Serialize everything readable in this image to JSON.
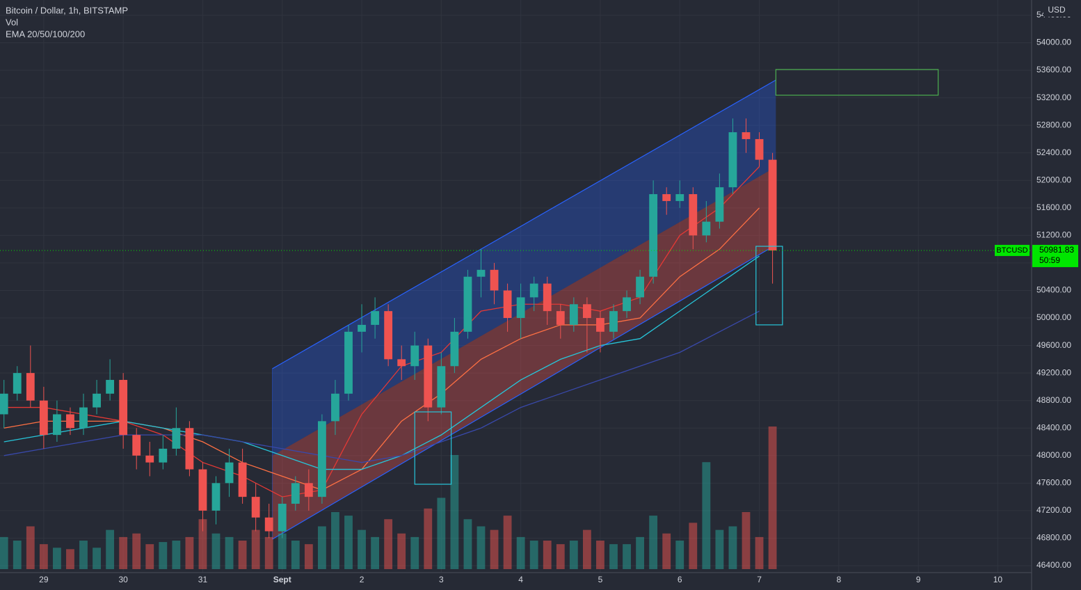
{
  "chart_data": {
    "type": "candlestick",
    "title": "Bitcoin / Dollar, 1h, BITSTAMP",
    "volume_label": "Vol",
    "indicator_label": "EMA 20/50/100/200",
    "currency": "USD",
    "xlim": [
      -13.2,
      298.2
    ],
    "ylim": [
      46299,
      54622
    ],
    "xticks": [
      {
        "value": 0,
        "label": "29"
      },
      {
        "value": 24,
        "label": "30"
      },
      {
        "value": 48,
        "label": "31"
      },
      {
        "value": 72,
        "label": "Sept"
      },
      {
        "value": 96,
        "label": "2"
      },
      {
        "value": 120,
        "label": "3"
      },
      {
        "value": 144,
        "label": "4"
      },
      {
        "value": 168,
        "label": "5"
      },
      {
        "value": 192,
        "label": "6"
      },
      {
        "value": 216,
        "label": "7"
      },
      {
        "value": 240,
        "label": "8"
      },
      {
        "value": 264,
        "label": "9"
      },
      {
        "value": 288,
        "label": "10"
      }
    ],
    "yticks": [
      {
        "value": 46400,
        "label": "46400.00"
      },
      {
        "value": 46800,
        "label": "46800.00"
      },
      {
        "value": 47200,
        "label": "47200.00"
      },
      {
        "value": 47600,
        "label": "47600.00"
      },
      {
        "value": 48000,
        "label": "48000.00"
      },
      {
        "value": 48400,
        "label": "48400.00"
      },
      {
        "value": 48800,
        "label": "48800.00"
      },
      {
        "value": 49200,
        "label": "49200.00"
      },
      {
        "value": 49600,
        "label": "49600.00"
      },
      {
        "value": 50000,
        "label": "50000.00"
      },
      {
        "value": 50400,
        "label": "50400.00"
      },
      {
        "value": 50800,
        "label": "50800.00"
      },
      {
        "value": 51200,
        "label": "51200.00"
      },
      {
        "value": 51600,
        "label": "51600.00"
      },
      {
        "value": 52000,
        "label": "52000.00"
      },
      {
        "value": 52400,
        "label": "52400.00"
      },
      {
        "value": 52800,
        "label": "52800.00"
      },
      {
        "value": 53200,
        "label": "53200.00"
      },
      {
        "value": 53600,
        "label": "53600.00"
      },
      {
        "value": 54000,
        "label": "54000.00"
      },
      {
        "value": 54400,
        "label": "54400.00"
      }
    ],
    "grid": true,
    "up_color": "#26a69a",
    "down_color": "#ef5350",
    "candles": {
      "x": [
        -12,
        -8,
        -4,
        0,
        4,
        8,
        12,
        16,
        20,
        24,
        28,
        32,
        36,
        40,
        44,
        48,
        52,
        56,
        60,
        64,
        68,
        72,
        76,
        80,
        84,
        88,
        92,
        96,
        100,
        104,
        108,
        112,
        116,
        120,
        124,
        128,
        132,
        136,
        140,
        144,
        148,
        152,
        156,
        160,
        164,
        168,
        172,
        176,
        180,
        184,
        188,
        192,
        196,
        200,
        204,
        208,
        212,
        216,
        220
      ],
      "open": [
        48600,
        48900,
        49200,
        48800,
        48300,
        48600,
        48400,
        48700,
        48900,
        49100,
        48300,
        48000,
        47900,
        48100,
        48400,
        47800,
        47200,
        47600,
        47900,
        47400,
        47100,
        46900,
        47300,
        47600,
        47400,
        48500,
        48900,
        49800,
        49900,
        50100,
        49400,
        49300,
        49600,
        48700,
        49300,
        49800,
        50600,
        50700,
        50400,
        50000,
        50300,
        50500,
        50100,
        49900,
        50200,
        50000,
        49800,
        50100,
        50300,
        50600,
        51800,
        51700,
        51800,
        51200,
        51400,
        51900,
        52700,
        52600,
        52300
      ],
      "high": [
        49100,
        49300,
        49600,
        49000,
        48800,
        48700,
        48900,
        49100,
        49400,
        49200,
        48400,
        48200,
        48300,
        48700,
        48500,
        47900,
        47700,
        48100,
        48100,
        47600,
        47300,
        47400,
        47700,
        47800,
        48600,
        49100,
        49900,
        50200,
        50300,
        50200,
        49600,
        49800,
        49700,
        49500,
        50000,
        50700,
        51000,
        50800,
        50500,
        50500,
        50600,
        50600,
        50200,
        50300,
        50300,
        50100,
        50200,
        50400,
        50700,
        52000,
        51900,
        52000,
        51900,
        51700,
        52100,
        52900,
        52900,
        52700,
        52400
      ],
      "low": [
        48400,
        48800,
        48700,
        48100,
        48200,
        48300,
        48300,
        48600,
        48800,
        48100,
        47800,
        47700,
        47800,
        48000,
        47700,
        46900,
        47000,
        47400,
        47300,
        46900,
        46800,
        46800,
        47200,
        47200,
        47300,
        48300,
        48800,
        49500,
        49700,
        49300,
        49100,
        49100,
        48500,
        48600,
        49200,
        49700,
        50300,
        50200,
        49800,
        49700,
        50100,
        49900,
        49700,
        49800,
        49500,
        49500,
        49700,
        50000,
        50200,
        50500,
        51500,
        51600,
        51000,
        51100,
        51300,
        51800,
        52400,
        52200,
        50500
      ],
      "close": [
        48900,
        49200,
        48800,
        48300,
        48600,
        48400,
        48700,
        48900,
        49100,
        48300,
        48000,
        47900,
        48100,
        48400,
        47800,
        47200,
        47600,
        47900,
        47400,
        47100,
        46900,
        47300,
        47600,
        47400,
        48500,
        48900,
        49800,
        49900,
        50100,
        49400,
        49300,
        49600,
        48700,
        49300,
        49800,
        50600,
        50700,
        50400,
        50000,
        50300,
        50500,
        50100,
        49900,
        50200,
        50000,
        49800,
        50100,
        50300,
        50600,
        51800,
        51700,
        51800,
        51200,
        51400,
        51900,
        52700,
        52600,
        52300,
        50981.83
      ],
      "volume": [
        45,
        40,
        60,
        35,
        30,
        28,
        40,
        30,
        55,
        45,
        50,
        35,
        38,
        40,
        45,
        70,
        50,
        45,
        40,
        55,
        45,
        50,
        40,
        35,
        60,
        80,
        75,
        55,
        45,
        70,
        50,
        45,
        85,
        100,
        160,
        70,
        60,
        55,
        75,
        45,
        40,
        40,
        35,
        40,
        55,
        40,
        35,
        35,
        45,
        75,
        50,
        40,
        65,
        150,
        55,
        60,
        80,
        45,
        200
      ]
    },
    "ema": [
      {
        "name": "EMA 20",
        "color": "#e53935",
        "x": [
          -12,
          0,
          12,
          24,
          36,
          48,
          60,
          72,
          84,
          96,
          108,
          120,
          132,
          144,
          156,
          168,
          180,
          192,
          204,
          216
        ],
        "values": [
          48700,
          48700,
          48600,
          48500,
          48300,
          47900,
          47700,
          47400,
          47500,
          48600,
          49300,
          49500,
          50100,
          50200,
          50200,
          50100,
          50300,
          51200,
          51600,
          52200
        ]
      },
      {
        "name": "EMA 50",
        "color": "#ff7043",
        "x": [
          -12,
          0,
          12,
          24,
          36,
          48,
          60,
          72,
          84,
          96,
          108,
          120,
          132,
          144,
          156,
          168,
          180,
          192,
          204,
          216
        ],
        "values": [
          48400,
          48500,
          48500,
          48500,
          48400,
          48200,
          47900,
          47700,
          47500,
          47800,
          48500,
          48900,
          49400,
          49700,
          49900,
          49900,
          50000,
          50600,
          51000,
          51600
        ]
      },
      {
        "name": "EMA 100",
        "color": "#26c6da",
        "x": [
          -12,
          0,
          12,
          24,
          36,
          48,
          60,
          72,
          84,
          96,
          108,
          120,
          132,
          144,
          156,
          168,
          180,
          192,
          204,
          216
        ],
        "values": [
          48200,
          48300,
          48400,
          48500,
          48400,
          48300,
          48200,
          48000,
          47800,
          47800,
          48000,
          48300,
          48700,
          49100,
          49400,
          49600,
          49700,
          50100,
          50500,
          50900
        ]
      },
      {
        "name": "EMA 200",
        "color": "#3949ab",
        "x": [
          -12,
          0,
          12,
          24,
          36,
          48,
          60,
          72,
          84,
          96,
          108,
          120,
          132,
          144,
          156,
          168,
          180,
          192,
          204,
          216
        ],
        "values": [
          48000,
          48100,
          48200,
          48300,
          48300,
          48300,
          48200,
          48100,
          48000,
          47900,
          48000,
          48200,
          48400,
          48700,
          48900,
          49100,
          49300,
          49500,
          49800,
          50100
        ]
      }
    ],
    "channel": {
      "x": [
        69,
        221
      ],
      "top": [
        49262,
        53459
      ],
      "middle": [
        47998,
        52195
      ],
      "bottom": [
        46784,
        51062
      ],
      "color": "#2962ff"
    },
    "boxes": [
      {
        "x": [
          221,
          270
        ],
        "y": [
          53238,
          53612
        ],
        "color": "#4caf50"
      },
      {
        "x": [
          112,
          123
        ],
        "y": [
          47583,
          48635
        ],
        "color": "#26c6da"
      },
      {
        "x": [
          215,
          223
        ],
        "y": [
          49900,
          51042
        ],
        "color": "#26c6da"
      }
    ],
    "last_price": {
      "symbol": "BTCUSD",
      "value": 50981.83,
      "countdown": "50:59",
      "color": "#00e600"
    }
  }
}
